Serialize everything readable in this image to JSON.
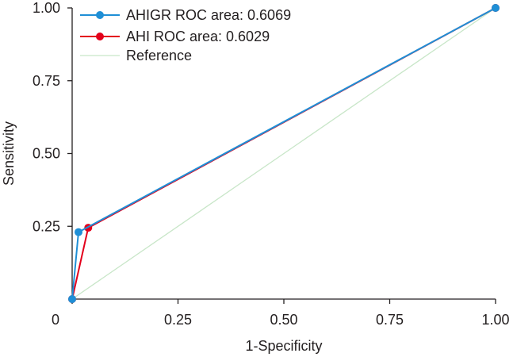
{
  "chart_data": {
    "type": "line",
    "title": "",
    "xlabel": "1-Specificity",
    "ylabel": "Sensitivity",
    "xlim": [
      0,
      1
    ],
    "ylim": [
      0,
      1
    ],
    "x_ticks": [
      0,
      0.25,
      0.5,
      0.75,
      1.0
    ],
    "x_tick_labels": [
      "0",
      "0.25",
      "0.50",
      "0.75",
      "1.00"
    ],
    "y_ticks": [
      0.25,
      0.5,
      0.75,
      1.0
    ],
    "y_tick_labels": [
      "0.25",
      "0.50",
      "0.75",
      "1.00"
    ],
    "grid": false,
    "legend_position": "top-left",
    "series": [
      {
        "name": "AHIGR ROC area: 0.6069",
        "color": "#1f8fd6",
        "marker": "circle",
        "x": [
          0,
          0.015,
          1.0
        ],
        "y": [
          0,
          0.23,
          1.0
        ]
      },
      {
        "name": "AHI ROC area: 0.6029",
        "color": "#e3001b",
        "marker": "circle",
        "x": [
          0,
          0.038,
          1.0
        ],
        "y": [
          0,
          0.245,
          1.0
        ]
      },
      {
        "name": "Reference",
        "color": "#c8e6c8",
        "marker": "none",
        "x": [
          0,
          1.0
        ],
        "y": [
          0,
          1.0
        ]
      }
    ]
  }
}
